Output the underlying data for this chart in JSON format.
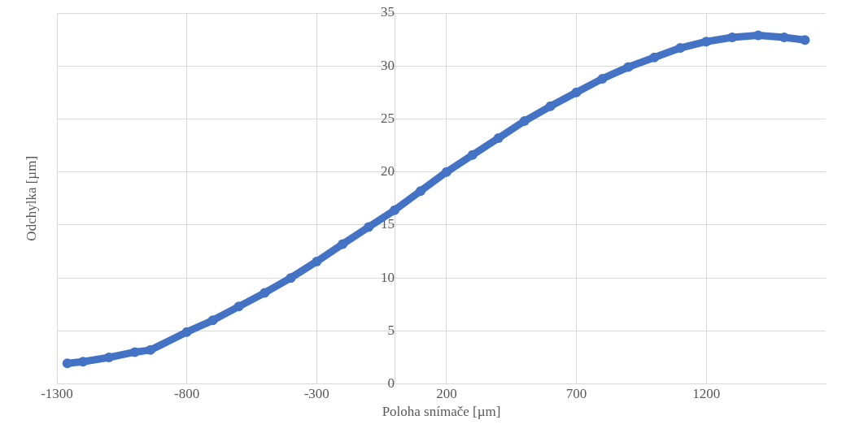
{
  "chart_data": {
    "type": "line",
    "xlabel": "Poloha snímače [µm]",
    "ylabel": "Odchylka [µm]",
    "x": [
      -1260,
      -1200,
      -1100,
      -1000,
      -940,
      -800,
      -700,
      -600,
      -500,
      -400,
      -300,
      -200,
      -100,
      0,
      100,
      200,
      300,
      400,
      500,
      600,
      700,
      800,
      900,
      1000,
      1100,
      1200,
      1300,
      1400,
      1500,
      1580
    ],
    "series": [
      {
        "color": "#4472c4",
        "values": [
          1.95,
          2.1,
          2.5,
          3.0,
          3.2,
          4.9,
          6.0,
          7.3,
          8.6,
          10.0,
          11.55,
          13.2,
          14.8,
          16.4,
          18.2,
          20.0,
          21.6,
          23.2,
          24.8,
          26.2,
          27.5,
          28.8,
          29.9,
          30.8,
          31.7,
          32.3,
          32.7,
          32.9,
          32.7,
          32.45
        ]
      }
    ],
    "xlim": [
      -1300,
      1660
    ],
    "xticks": [
      -1300,
      -800,
      -300,
      200,
      700,
      1200
    ],
    "ylim": [
      0,
      35
    ],
    "yticks": [
      0,
      5,
      10,
      15,
      20,
      25,
      30,
      35
    ],
    "grid": true,
    "marker": "circle",
    "line_style": "solid",
    "legend": false
  }
}
